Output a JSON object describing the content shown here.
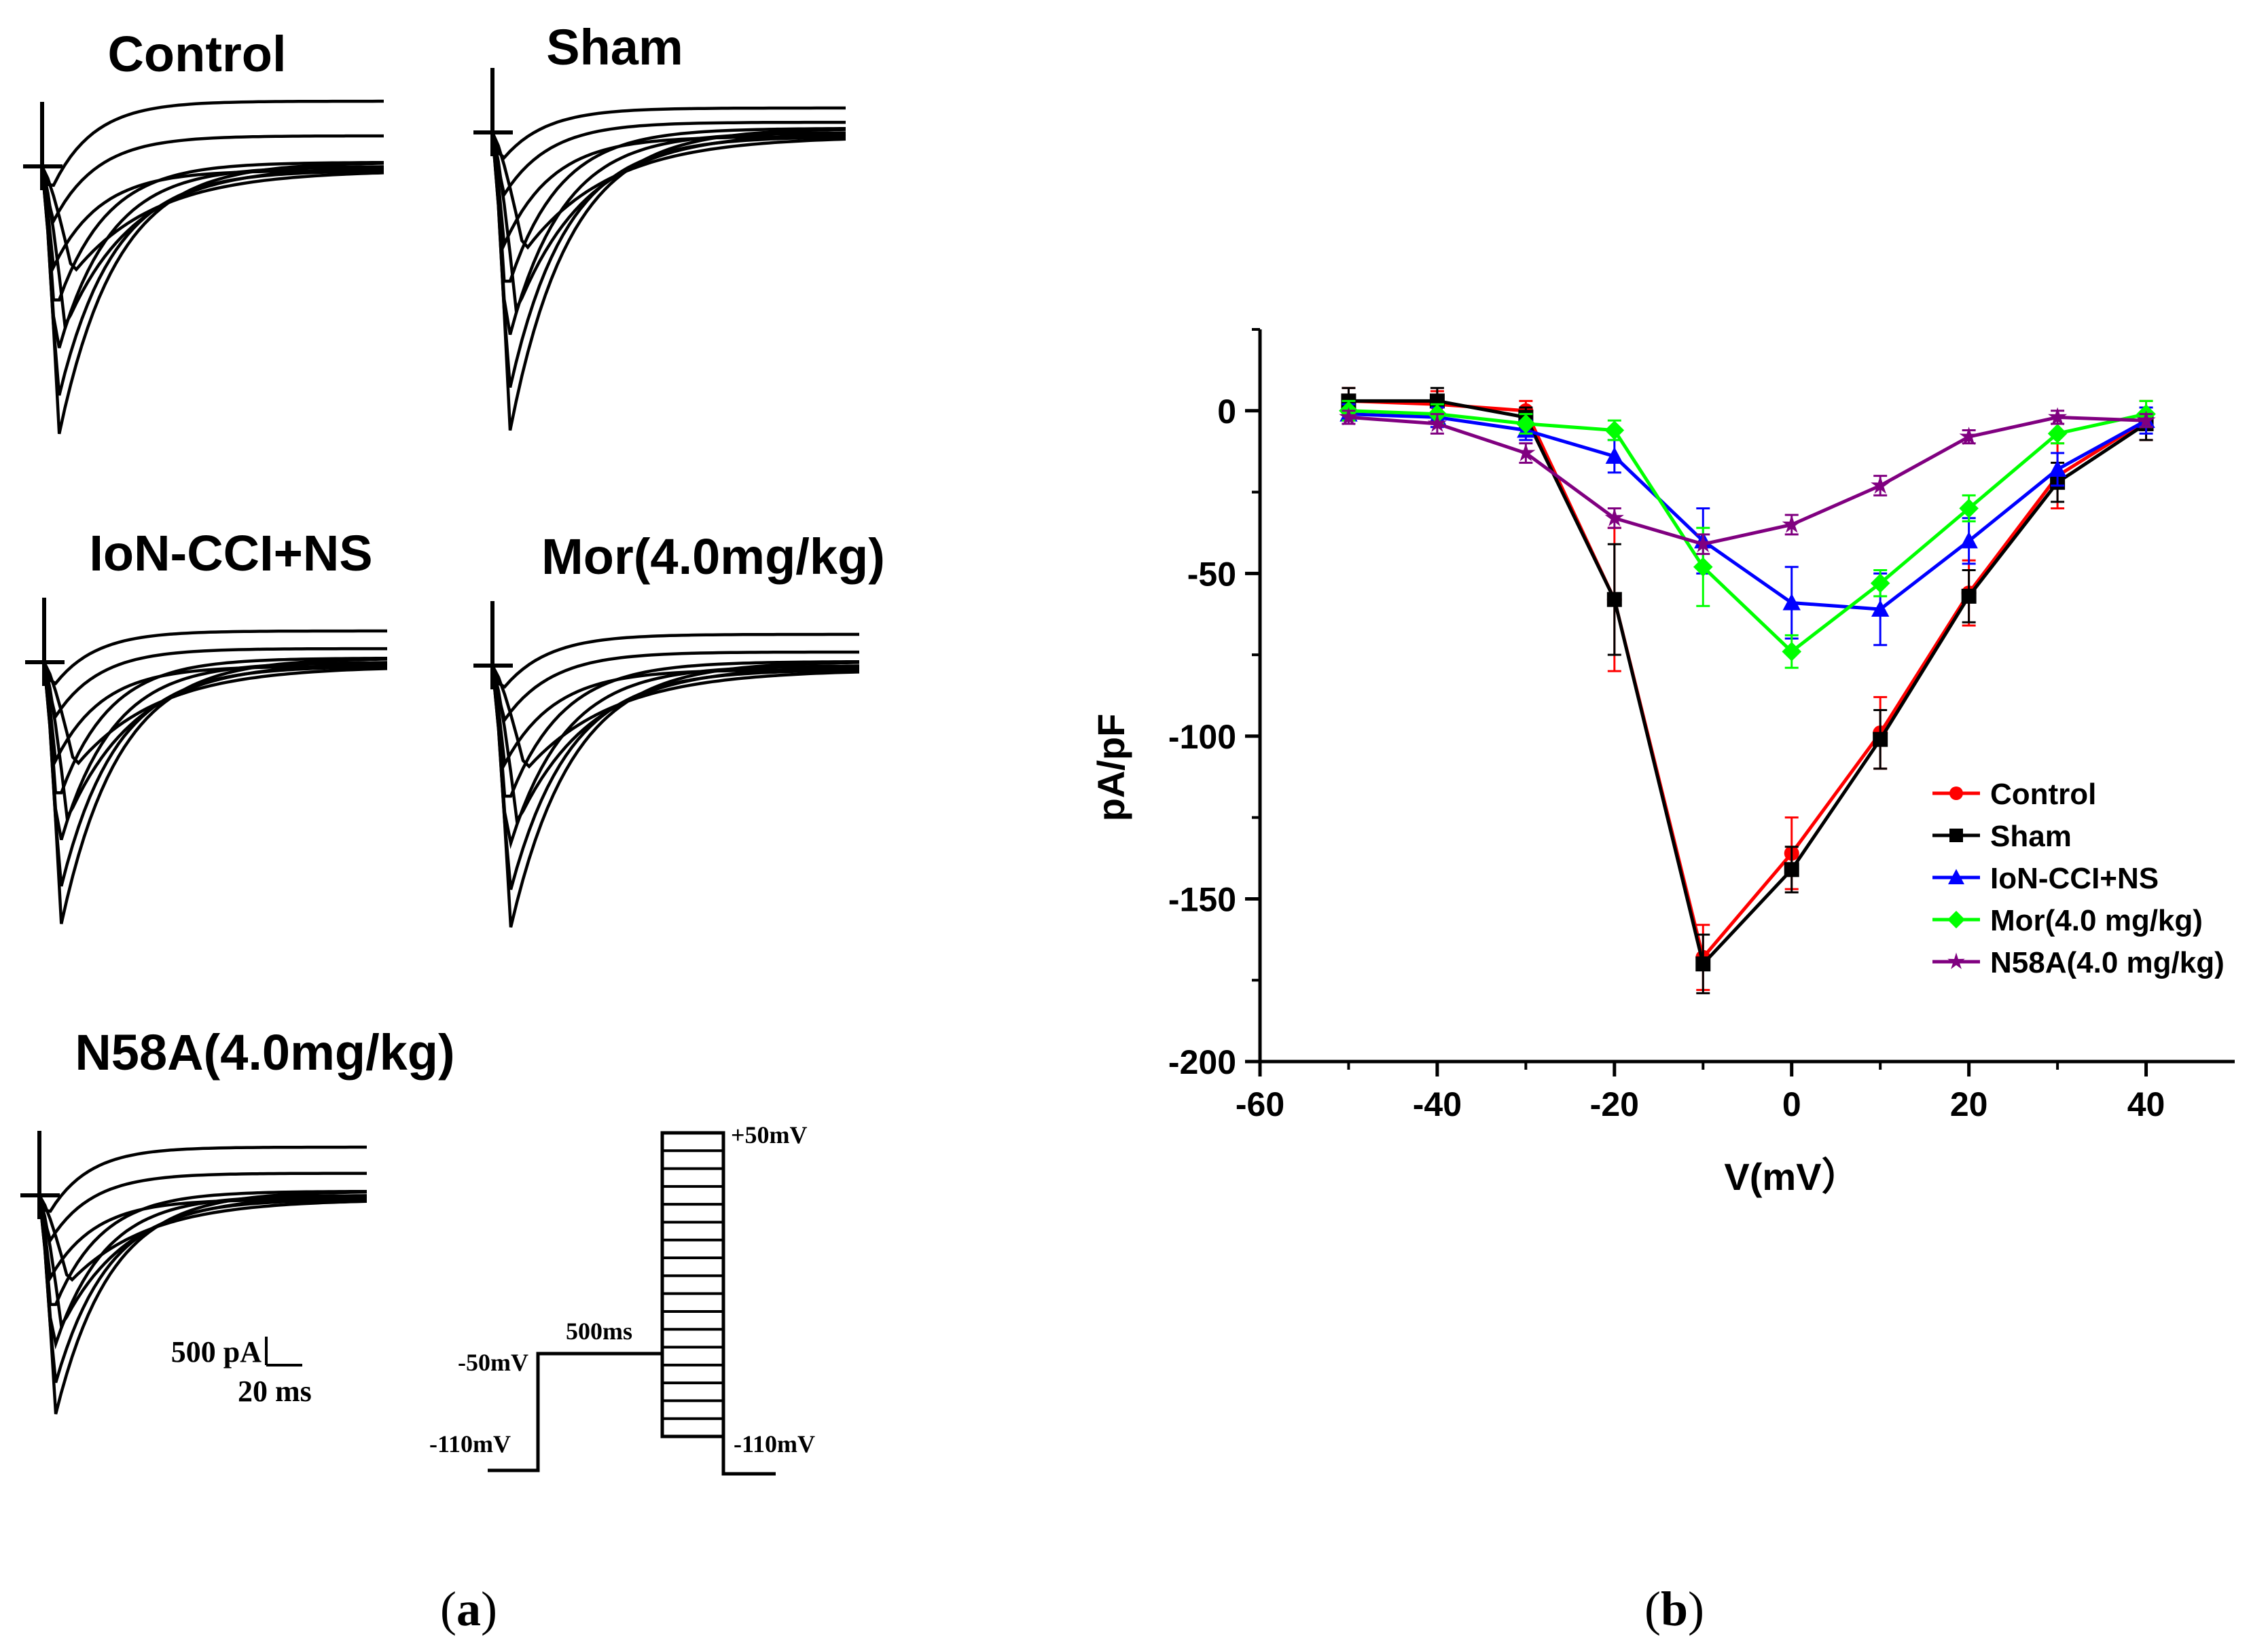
{
  "panel_a": {
    "caption_letter": "a",
    "traces": [
      {
        "title": "Control",
        "peak": 1.0
      },
      {
        "title": "Sham",
        "peak": 1.0
      },
      {
        "title": "IoN-CCI+NS",
        "peak": 0.92
      },
      {
        "title": "Mor(4.0mg/kg)",
        "peak": 0.92
      },
      {
        "title": "N58A(4.0mg/kg)",
        "peak": 0.95
      }
    ],
    "scale_bar": {
      "current": "500 pA",
      "time": "20 ms"
    },
    "protocol": {
      "hold_label": "-110mV",
      "prepulse_label": "-50mV",
      "duration_label": "500ms",
      "top_label": "+50mV",
      "end_label": "-110mV"
    }
  },
  "panel_b": {
    "caption_letter": "b"
  },
  "chart_data": {
    "type": "line",
    "title": "",
    "xlabel": "V(mV）",
    "ylabel": "pA/pF",
    "xlim": [
      -60,
      50
    ],
    "ylim": [
      -200,
      25
    ],
    "xticks": [
      -60,
      -40,
      -20,
      0,
      20,
      40
    ],
    "yticks": [
      0,
      -50,
      -100,
      -150,
      -200
    ],
    "legend_position": "lower-right",
    "x": [
      -50,
      -40,
      -30,
      -20,
      -10,
      0,
      10,
      20,
      30,
      40
    ],
    "series": [
      {
        "name": "Control",
        "color": "#ff0000",
        "marker": "circle",
        "values": [
          3,
          2,
          0,
          -58,
          -168,
          -136,
          -99,
          -56,
          -20,
          -3
        ],
        "errors": [
          4,
          4,
          3,
          22,
          10,
          11,
          11,
          10,
          10,
          6
        ]
      },
      {
        "name": "Sham",
        "color": "#000000",
        "marker": "square",
        "values": [
          3,
          3,
          -2,
          -58,
          -170,
          -141,
          -101,
          -57,
          -22,
          -4
        ],
        "errors": [
          4,
          4,
          3,
          17,
          9,
          7,
          9,
          8,
          6,
          5
        ]
      },
      {
        "name": "IoN-CCI+NS",
        "color": "#0000ff",
        "marker": "triangle",
        "values": [
          -1,
          -2,
          -6,
          -14,
          -40,
          -59,
          -61,
          -40,
          -18,
          -3
        ],
        "errors": [
          3,
          3,
          3,
          5,
          10,
          11,
          11,
          7,
          5,
          4
        ]
      },
      {
        "name": "Mor(4.0 mg/kg)",
        "color": "#00ff00",
        "marker": "diamond",
        "values": [
          0,
          -1,
          -4,
          -6,
          -48,
          -74,
          -53,
          -30,
          -7,
          -1
        ],
        "errors": [
          3,
          3,
          3,
          3,
          12,
          5,
          4,
          4,
          3,
          4
        ]
      },
      {
        "name": "N58A(4.0 mg/kg)",
        "color": "#800080",
        "marker": "star",
        "values": [
          -2,
          -4,
          -13,
          -33,
          -41,
          -35,
          -23,
          -8,
          -2,
          -3
        ],
        "errors": [
          2,
          3,
          3,
          3,
          3,
          3,
          3,
          2,
          2,
          2
        ]
      }
    ]
  }
}
